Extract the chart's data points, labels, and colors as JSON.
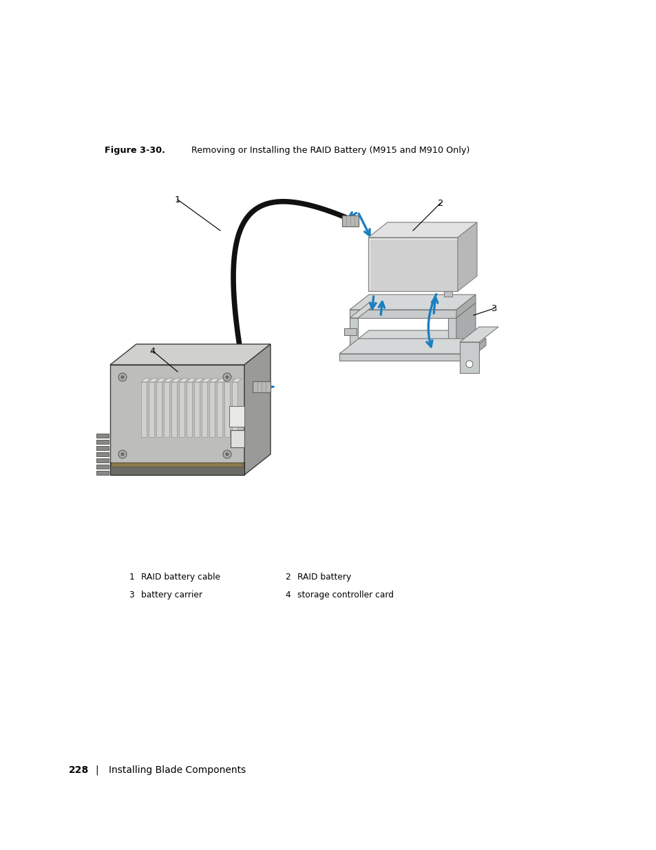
{
  "title_bold": "Figure 3-30.",
  "title_rest": "    Removing or Installing the RAID Battery (M915 and M910 Only)",
  "page_number": "228",
  "page_section": "Installing Blade Components",
  "bg_color": "#ffffff",
  "arrow_color": "#1a7fc1",
  "label_1": "RAID battery cable",
  "label_2": "RAID battery",
  "label_3": "battery carrier",
  "label_4": "storage controller card",
  "batt_fc_front": "#d0d0d0",
  "batt_fc_top": "#e2e2e2",
  "batt_fc_right": "#b8b8b8",
  "carrier_fc": "#c8cccc",
  "carrier_fc_dark": "#a8acac",
  "board_fc": "#bdbdba",
  "board_fc_top": "#d0d0ce",
  "board_fc_right": "#9a9a98",
  "fin_fc": "#c8c8c4",
  "cable_color": "#111111"
}
